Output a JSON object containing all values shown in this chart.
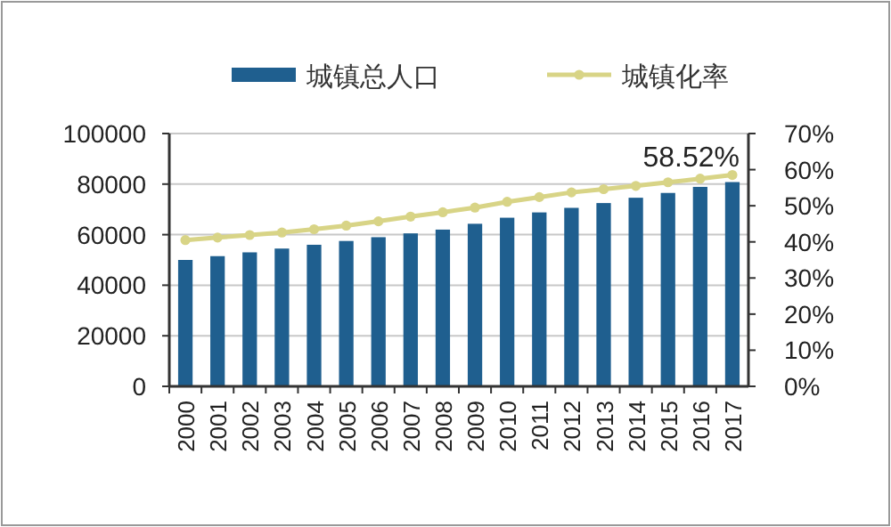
{
  "chart_data": {
    "type": "bar",
    "categories": [
      "2000",
      "2001",
      "2002",
      "2003",
      "2004",
      "2005",
      "2006",
      "2007",
      "2008",
      "2009",
      "2010",
      "2011",
      "2012",
      "2013",
      "2014",
      "2015",
      "2016",
      "2017"
    ],
    "series": [
      {
        "name": "城镇总人口",
        "color": "#1f5f8f",
        "values": [
          50000,
          51500,
          53000,
          54500,
          56000,
          57500,
          59000,
          60500,
          62000,
          64300,
          66700,
          68800,
          70600,
          72500,
          74600,
          76500,
          78900,
          80800
        ]
      },
      {
        "name": "城镇化率",
        "color": "#d8d486",
        "type": "line",
        "axis": "y2",
        "values": [
          40.5,
          41.2,
          41.9,
          42.6,
          43.5,
          44.5,
          45.7,
          47.0,
          48.2,
          49.5,
          51.1,
          52.4,
          53.7,
          54.6,
          55.5,
          56.5,
          57.5,
          58.52
        ],
        "value_labels": [
          null,
          null,
          null,
          null,
          null,
          null,
          null,
          null,
          null,
          null,
          null,
          null,
          null,
          null,
          null,
          null,
          null,
          "58.52%"
        ]
      }
    ],
    "ylim": [
      0,
      100000
    ],
    "yticks": [
      0,
      20000,
      40000,
      60000,
      80000,
      100000
    ],
    "y2lim": [
      0,
      70
    ],
    "y2ticks": [
      {
        "value": 0,
        "label": "0%"
      },
      {
        "value": 10,
        "label": "10%"
      },
      {
        "value": 20,
        "label": "20%"
      },
      {
        "value": 30,
        "label": "30%"
      },
      {
        "value": 40,
        "label": "40%"
      },
      {
        "value": 50,
        "label": "50%"
      },
      {
        "value": 60,
        "label": "60%"
      },
      {
        "value": 70,
        "label": "70%"
      }
    ],
    "grid": "y",
    "legend": "top",
    "marker": "circle"
  }
}
